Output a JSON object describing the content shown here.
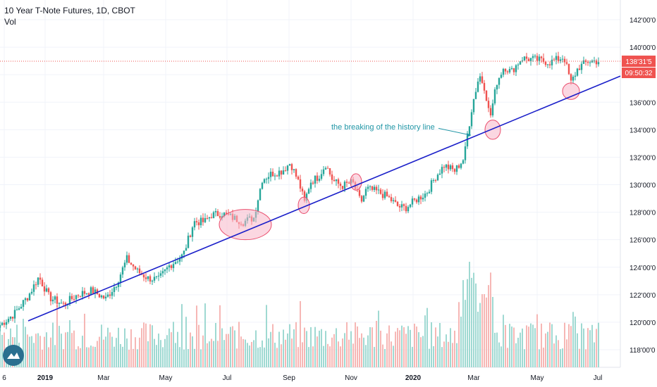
{
  "header": {
    "title": "10 Year T-Note Futures, 1D, CBOT",
    "volume_label": "Vol"
  },
  "price_badge": {
    "value": "138'31'5",
    "countdown": "09:50:32",
    "color": "#ef5350"
  },
  "annotation": {
    "text": "the breaking of the history line"
  },
  "colors": {
    "up": "#26a69a",
    "down": "#ef5350",
    "trendline": "#1a1fc9",
    "highlight_fill": "#f7b6c9",
    "highlight_stroke": "#ea4d6d",
    "annotation_color": "#2196a6",
    "vol_up": "#9fd9d2",
    "vol_down": "#f6b7b5"
  },
  "chart_data": {
    "type": "candlestick",
    "y_axis_ticks": [
      "142'00'0",
      "140'00'0",
      "138'00'0",
      "136'00'0",
      "134'00'0",
      "132'00'0",
      "130'00'0",
      "128'00'0",
      "126'00'0",
      "124'00'0",
      "122'00'0",
      "120'00'0",
      "118'00'0"
    ],
    "y_range": [
      116.9,
      142.6
    ],
    "x_axis_ticks": [
      "6",
      "2019",
      "Mar",
      "May",
      "Jul",
      "Sep",
      "Nov",
      "2020",
      "Mar",
      "May",
      "Jul"
    ],
    "current_price": 138.98,
    "price_path": [
      {
        "t": 0,
        "p": 119.8
      },
      {
        "t": 20,
        "p": 120.6
      },
      {
        "t": 40,
        "p": 121.9
      },
      {
        "t": 55,
        "p": 123.3
      },
      {
        "t": 70,
        "p": 121.8
      },
      {
        "t": 90,
        "p": 121.3
      },
      {
        "t": 110,
        "p": 122.0
      },
      {
        "t": 130,
        "p": 122.3
      },
      {
        "t": 150,
        "p": 121.7
      },
      {
        "t": 165,
        "p": 122.8
      },
      {
        "t": 180,
        "p": 124.6
      },
      {
        "t": 195,
        "p": 123.7
      },
      {
        "t": 210,
        "p": 123.2
      },
      {
        "t": 225,
        "p": 123.1
      },
      {
        "t": 240,
        "p": 124.1
      },
      {
        "t": 260,
        "p": 124.9
      },
      {
        "t": 275,
        "p": 127.3
      },
      {
        "t": 290,
        "p": 127.3
      },
      {
        "t": 300,
        "p": 127.8
      },
      {
        "t": 315,
        "p": 127.9
      },
      {
        "t": 330,
        "p": 127.6
      },
      {
        "t": 345,
        "p": 127.3
      },
      {
        "t": 360,
        "p": 127.6
      },
      {
        "t": 372,
        "p": 130.4
      },
      {
        "t": 385,
        "p": 130.8
      },
      {
        "t": 400,
        "p": 131.0
      },
      {
        "t": 412,
        "p": 131.6
      },
      {
        "t": 425,
        "p": 130.0
      },
      {
        "t": 432,
        "p": 128.7
      },
      {
        "t": 440,
        "p": 130.2
      },
      {
        "t": 452,
        "p": 130.6
      },
      {
        "t": 462,
        "p": 131.5
      },
      {
        "t": 472,
        "p": 130.3
      },
      {
        "t": 485,
        "p": 129.9
      },
      {
        "t": 500,
        "p": 130.2
      },
      {
        "t": 512,
        "p": 128.7
      },
      {
        "t": 520,
        "p": 129.7
      },
      {
        "t": 535,
        "p": 129.5
      },
      {
        "t": 550,
        "p": 129.1
      },
      {
        "t": 565,
        "p": 128.4
      },
      {
        "t": 575,
        "p": 128.3
      },
      {
        "t": 590,
        "p": 128.9
      },
      {
        "t": 605,
        "p": 129.4
      },
      {
        "t": 618,
        "p": 130.6
      },
      {
        "t": 630,
        "p": 131.4
      },
      {
        "t": 645,
        "p": 131.0
      },
      {
        "t": 658,
        "p": 131.9
      },
      {
        "t": 670,
        "p": 135.8
      },
      {
        "t": 680,
        "p": 138.0
      },
      {
        "t": 688,
        "p": 137.0
      },
      {
        "t": 695,
        "p": 134.8
      },
      {
        "t": 705,
        "p": 137.5
      },
      {
        "t": 715,
        "p": 138.6
      },
      {
        "t": 725,
        "p": 138.2
      },
      {
        "t": 740,
        "p": 139.2
      },
      {
        "t": 760,
        "p": 139.1
      },
      {
        "t": 780,
        "p": 138.9
      },
      {
        "t": 800,
        "p": 139.3
      },
      {
        "t": 810,
        "p": 137.4
      },
      {
        "t": 820,
        "p": 138.5
      },
      {
        "t": 835,
        "p": 139.0
      },
      {
        "t": 850,
        "p": 138.98
      }
    ],
    "trendline": {
      "from": {
        "t": 40,
        "p": 120.1
      },
      "to": {
        "t": 880,
        "p": 137.9
      }
    },
    "annotation_arrow": {
      "from": {
        "t": 622,
        "p": 134.1
      },
      "to": {
        "t": 668,
        "p": 133.6
      }
    },
    "highlights": [
      {
        "t": 348,
        "p": 127.1,
        "rt": 37,
        "rp": 1.1
      },
      {
        "t": 431,
        "p": 128.5,
        "rt": 8,
        "rp": 0.6
      },
      {
        "t": 505,
        "p": 130.2,
        "rt": 8,
        "rp": 0.6
      },
      {
        "t": 699,
        "p": 134.0,
        "rt": 11,
        "rp": 0.7
      },
      {
        "t": 810,
        "p": 136.8,
        "rt": 12,
        "rp": 0.6
      }
    ]
  }
}
